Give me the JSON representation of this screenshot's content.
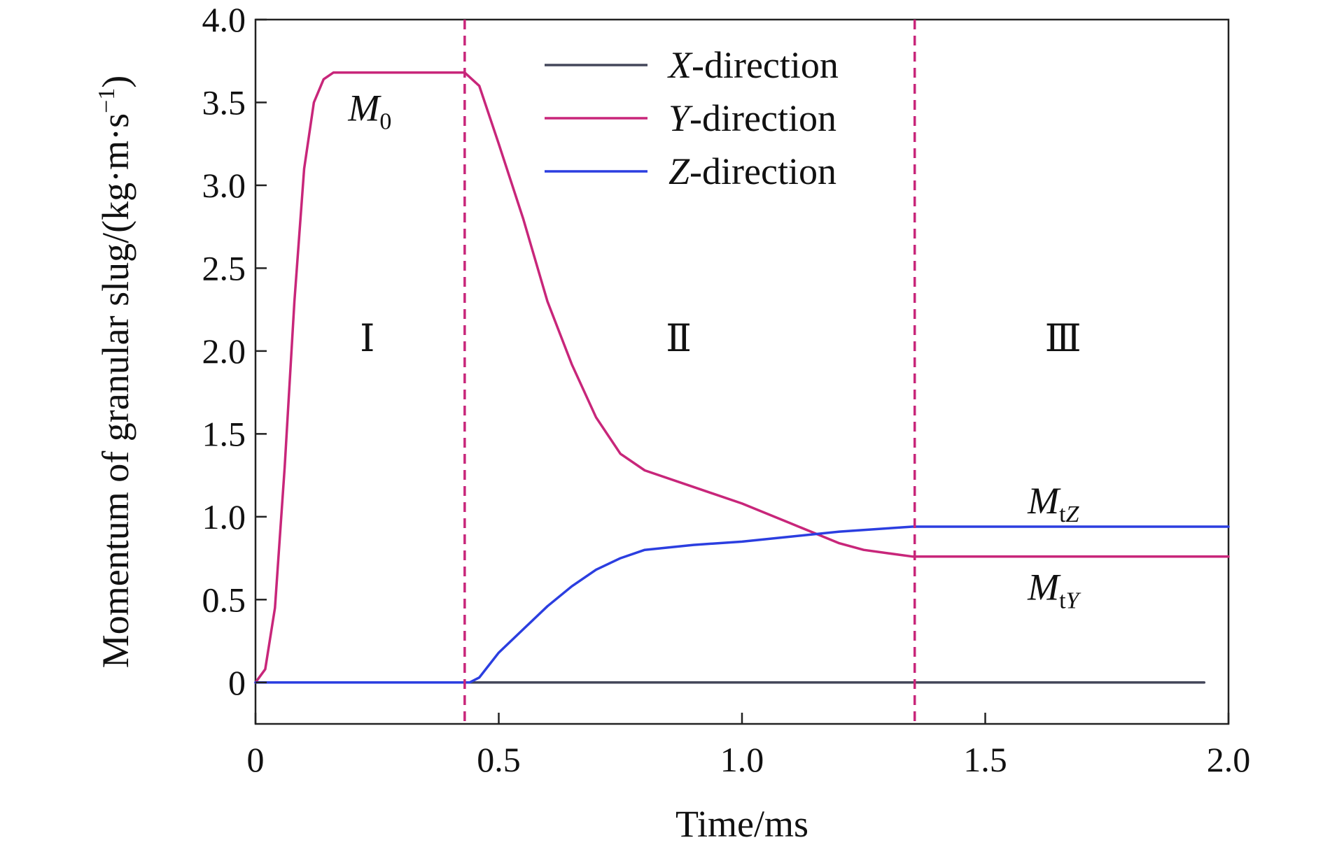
{
  "chart_data": {
    "type": "line",
    "xlabel": "Time/ms",
    "ylabel": "Momentum of granular slug/(kg·m·s",
    "ylabel_sup": "−1",
    "ylabel_close": ")",
    "xlim": [
      0,
      2.0
    ],
    "ylim": [
      -0.25,
      4.0
    ],
    "xticks": [
      {
        "value": 0,
        "label": "0"
      },
      {
        "value": 0.5,
        "label": "0.5"
      },
      {
        "value": 1.0,
        "label": "1.0"
      },
      {
        "value": 1.5,
        "label": "1.5"
      },
      {
        "value": 2.0,
        "label": "2.0"
      }
    ],
    "yticks": [
      {
        "value": 0,
        "label": "0"
      },
      {
        "value": 0.5,
        "label": "0.5"
      },
      {
        "value": 1.0,
        "label": "1.0"
      },
      {
        "value": 1.5,
        "label": "1.5"
      },
      {
        "value": 2.0,
        "label": "2.0"
      },
      {
        "value": 2.5,
        "label": "2.5"
      },
      {
        "value": 3.0,
        "label": "3.0"
      },
      {
        "value": 3.5,
        "label": "3.5"
      },
      {
        "value": 4.0,
        "label": "4.0"
      }
    ],
    "grid": false,
    "legend_position": "top-center",
    "series": [
      {
        "name_italic": "X",
        "name_rest": "-direction",
        "color": "#44475a",
        "x": [
          0,
          0.5,
          1.0,
          1.5,
          1.95
        ],
        "y": [
          0,
          0,
          0,
          0,
          0
        ]
      },
      {
        "name_italic": "Y",
        "name_rest": "-direction",
        "color": "#c8267a",
        "x": [
          0,
          0.02,
          0.04,
          0.06,
          0.08,
          0.1,
          0.12,
          0.14,
          0.16,
          0.2,
          0.3,
          0.43,
          0.46,
          0.5,
          0.55,
          0.6,
          0.65,
          0.7,
          0.75,
          0.8,
          0.9,
          1.0,
          1.1,
          1.15,
          1.2,
          1.25,
          1.3,
          1.35,
          1.5,
          1.75,
          2.0
        ],
        "y": [
          0,
          0.08,
          0.45,
          1.3,
          2.3,
          3.1,
          3.5,
          3.64,
          3.68,
          3.68,
          3.68,
          3.68,
          3.6,
          3.25,
          2.8,
          2.3,
          1.92,
          1.6,
          1.38,
          1.28,
          1.18,
          1.08,
          0.96,
          0.9,
          0.84,
          0.8,
          0.78,
          0.76,
          0.76,
          0.76,
          0.76
        ]
      },
      {
        "name_italic": "Z",
        "name_rest": "-direction",
        "color": "#2b3ee0",
        "x": [
          0,
          0.3,
          0.44,
          0.46,
          0.5,
          0.55,
          0.6,
          0.65,
          0.7,
          0.75,
          0.8,
          0.9,
          1.0,
          1.1,
          1.2,
          1.3,
          1.35,
          1.5,
          1.75,
          2.0
        ],
        "y": [
          0,
          0,
          0,
          0.03,
          0.18,
          0.32,
          0.46,
          0.58,
          0.68,
          0.75,
          0.8,
          0.83,
          0.85,
          0.88,
          0.91,
          0.93,
          0.94,
          0.94,
          0.94,
          0.94
        ]
      }
    ],
    "vertical_lines": [
      {
        "x": 0.43,
        "color": "#c8267a",
        "style": "dashed"
      },
      {
        "x": 1.355,
        "color": "#c8267a",
        "style": "dashed"
      }
    ],
    "annotations": [
      {
        "main": "M",
        "sub": "0",
        "sub_italic": false,
        "x": 0.235,
        "y": 3.39
      },
      {
        "main": "M",
        "sub": "tZ",
        "sub_italic": true,
        "x": 1.64,
        "y": 1.02
      },
      {
        "main": "M",
        "sub": "tY",
        "sub_italic": true,
        "x": 1.64,
        "y": 0.5
      }
    ],
    "regions": [
      {
        "label": "Ⅰ",
        "x": 0.23,
        "y": 2.0
      },
      {
        "label": "Ⅱ",
        "x": 0.87,
        "y": 2.0
      },
      {
        "label": "Ⅲ",
        "x": 1.66,
        "y": 2.0
      }
    ]
  }
}
